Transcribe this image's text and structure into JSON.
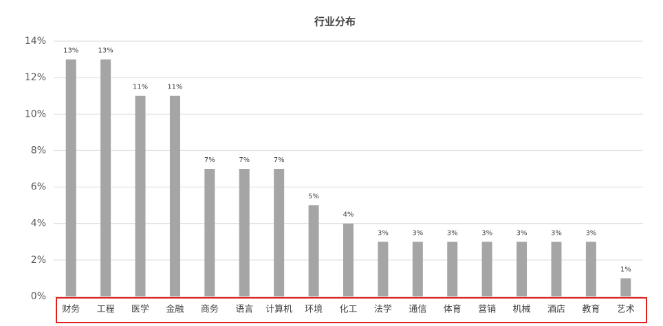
{
  "chart_data": {
    "type": "bar",
    "title": "行业分布",
    "categories": [
      "财务",
      "工程",
      "医学",
      "金融",
      "商务",
      "语言",
      "计算机",
      "环境",
      "化工",
      "法学",
      "通信",
      "体育",
      "营销",
      "机械",
      "酒店",
      "教育",
      "艺术"
    ],
    "values": [
      13,
      13,
      11,
      11,
      7,
      7,
      7,
      5,
      4,
      3,
      3,
      3,
      3,
      3,
      3,
      3,
      1
    ],
    "value_labels": [
      "13%",
      "13%",
      "11%",
      "11%",
      "7%",
      "7%",
      "7%",
      "5%",
      "4%",
      "3%",
      "3%",
      "3%",
      "3%",
      "3%",
      "3%",
      "3%",
      "1%"
    ],
    "color": "#a5a5a5",
    "ylim": [
      0,
      14
    ],
    "yticks": [
      {
        "value": 0,
        "label": "0%"
      },
      {
        "value": 2,
        "label": "2%"
      },
      {
        "value": 4,
        "label": "4%"
      },
      {
        "value": 6,
        "label": "6%"
      },
      {
        "value": 8,
        "label": "8%"
      },
      {
        "value": 10,
        "label": "10%"
      },
      {
        "value": 12,
        "label": "12%"
      },
      {
        "value": 14,
        "label": "14%"
      }
    ],
    "grid": true
  }
}
